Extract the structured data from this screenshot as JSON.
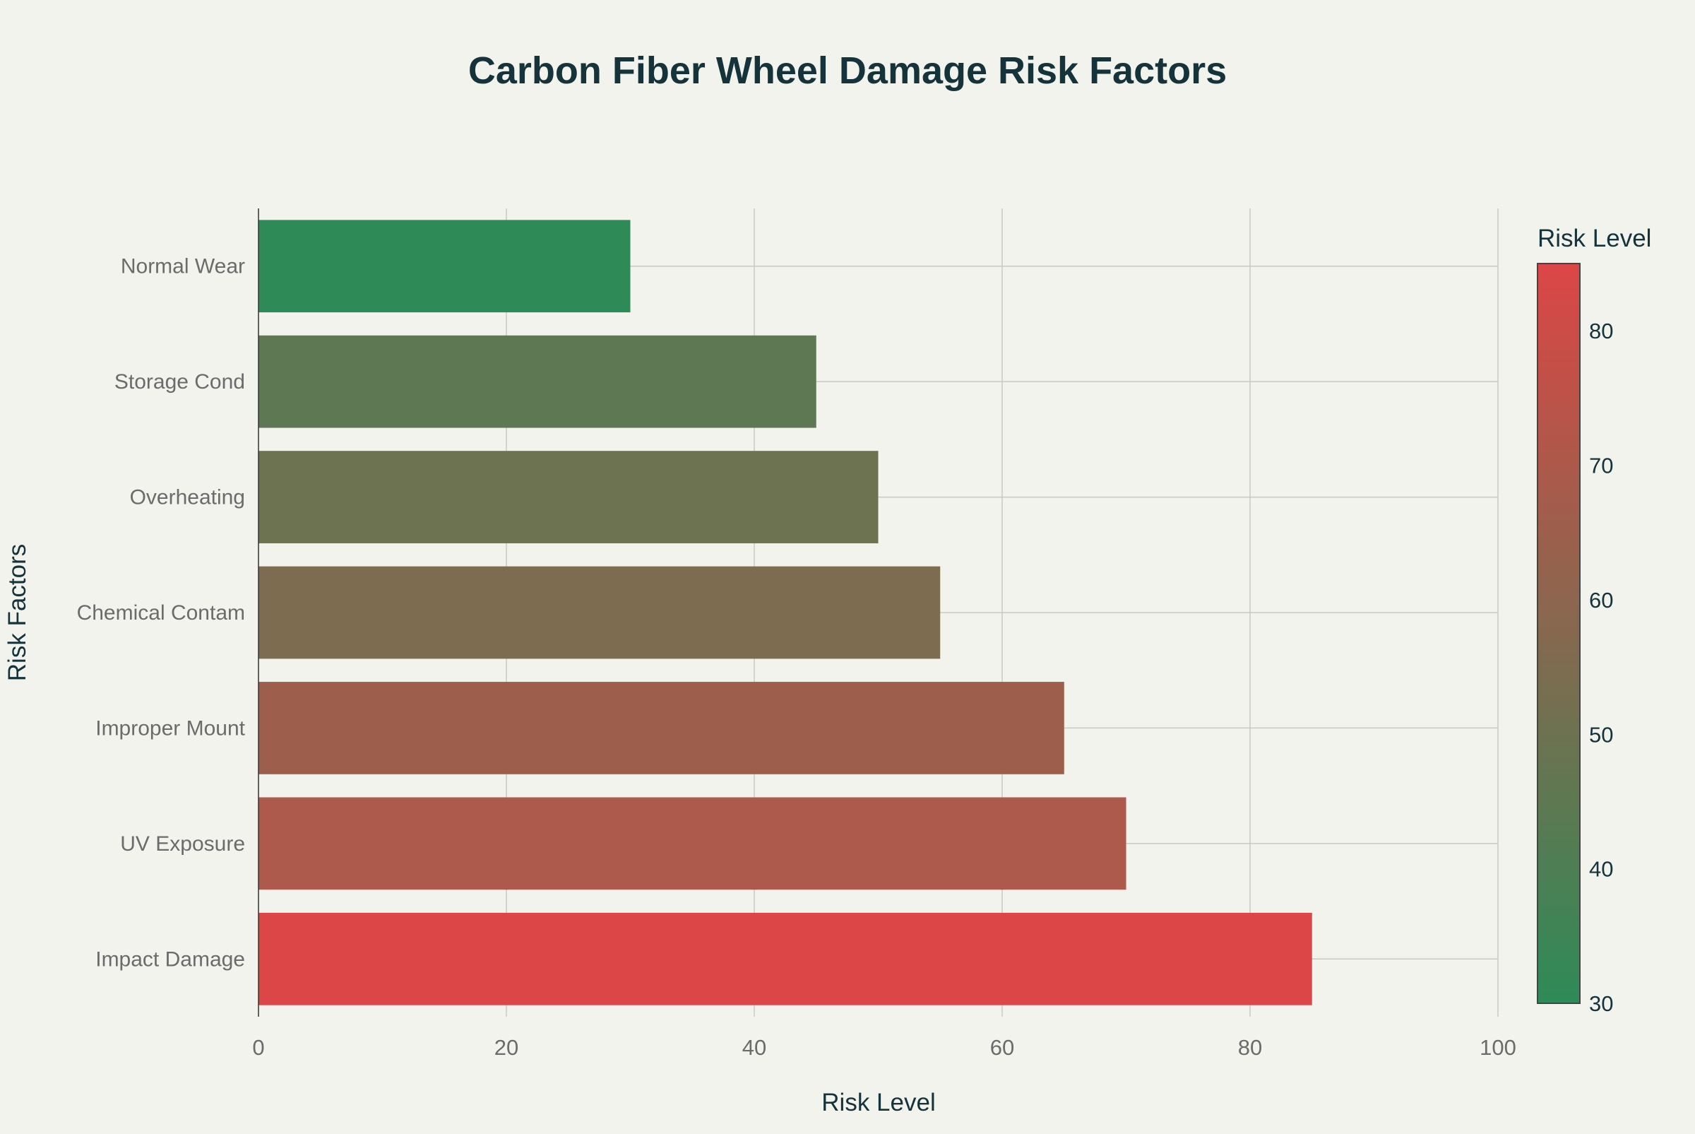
{
  "chart_data": {
    "type": "bar",
    "orientation": "horizontal",
    "title": "Carbon Fiber Wheel Damage Risk Factors",
    "xlabel": "Risk Level",
    "ylabel": "Risk Factors",
    "categories": [
      "Normal Wear",
      "Storage Cond",
      "Overheating",
      "Chemical Contam",
      "Improper Mount",
      "UV Exposure",
      "Impact Damage"
    ],
    "values": [
      30,
      45,
      50,
      55,
      65,
      70,
      85
    ],
    "xlim": [
      0,
      100
    ],
    "xticks": [
      0,
      20,
      40,
      60,
      80,
      100
    ],
    "grid": true,
    "colorbar": {
      "title": "Risk Level",
      "range": [
        30,
        85
      ],
      "ticks": [
        30,
        40,
        50,
        60,
        70,
        80
      ],
      "color_low": "#2E8B57",
      "color_high": "#DC4646"
    }
  }
}
